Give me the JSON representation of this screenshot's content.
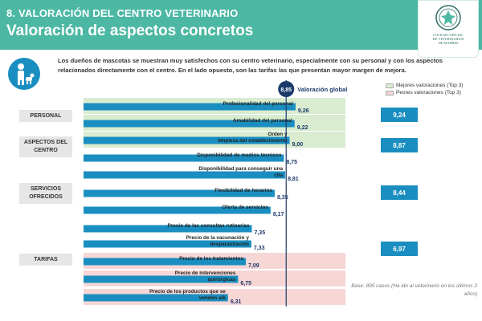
{
  "header": {
    "section": "8. VALORACIÓN DEL CENTRO VETERINARIO",
    "title": "Valoración de aspectos concretos"
  },
  "logo": {
    "text_lines": [
      "COLEGIO OFICIAL",
      "DE VETERINARIOS",
      "DE MADRID"
    ]
  },
  "intro": {
    "icon": "person-with-pet-icon",
    "text": "Los dueños de mascotas se muestran muy satisfechos con su centro veterinario, especialmente con su personal y con los aspectos relacionados directamente con el centro. En el lado opuesto, son las tarifas las que presentan mayor margen de mejora."
  },
  "legend": {
    "best_label": "Mejores valoraciones (Top 3)",
    "worst_label": "Peores valoraciones (Top 3)",
    "best_color": "#d9ecd0",
    "worst_color": "#f7d6d6"
  },
  "categories": [
    {
      "label": "PERSONAL",
      "score": "9,24"
    },
    {
      "label": "ASPECTOS DEL CENTRO",
      "score": "8,87"
    },
    {
      "label": "SERVICIOS OFRECIDOS",
      "score": "8,44"
    },
    {
      "label": "TARIFAS",
      "score": "6,97"
    }
  ],
  "base_note": "Base: 895 casos (Ha ido al veterinario en los últimos 2 años)",
  "chart_data": {
    "type": "bar",
    "orientation": "horizontal",
    "categories": [
      "Profesionalidad del personal",
      "Amabilidad del personal",
      "Orden y limpieza del establecimiento",
      "Disponibilidad de medios técnicos",
      "Disponibilidad para conseguir una cita",
      "Flexibilidad de horarios",
      "Oferta de servicios",
      "Precio de las consultas rutinarias",
      "Precio de la vacunación y desparasitación",
      "Precio de los tratamientos",
      "Precio de intervenciones quirúrgicas",
      "Precio de los productos que se venden allí"
    ],
    "values": [
      9.26,
      9.22,
      9.0,
      8.75,
      8.81,
      8.35,
      8.17,
      7.35,
      7.33,
      7.09,
      6.75,
      6.31
    ],
    "value_labels": [
      "9,26",
      "9,22",
      "9,00",
      "8,75",
      "8,81",
      "8,35",
      "8,17",
      "7,35",
      "7,33",
      "7,09",
      "6,75",
      "6,31"
    ],
    "highlight": [
      "best",
      "best",
      "best",
      "",
      "",
      "",
      "",
      "",
      "",
      "worst",
      "worst",
      "worst"
    ],
    "reference_value": 8.85,
    "reference_text": "8,85",
    "reference_label": "Valoración global",
    "xlim": [
      0,
      10
    ],
    "bar_color": "#1a8ec0",
    "reference_color": "#1b3a6b"
  }
}
